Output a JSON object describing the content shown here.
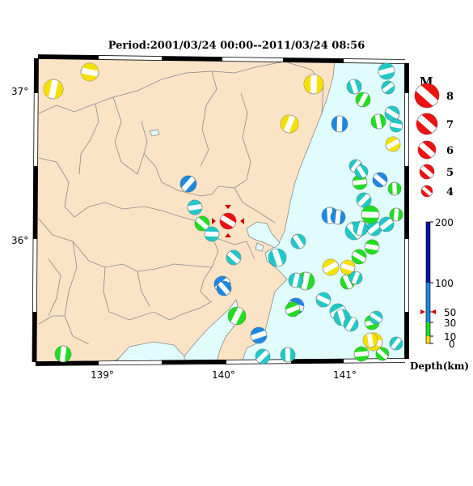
{
  "title": "Period:2001/03/24 00:00--2011/03/24 08:56",
  "map": {
    "lon_labels": [
      "139°",
      "140°",
      "141°"
    ],
    "lat_labels": [
      "37°",
      "36°"
    ],
    "land_color": "#fbe3c6",
    "sea_color": "#e1fcfc"
  },
  "legend": {
    "magnitude_title": "M",
    "magnitudes": [
      "8",
      "7",
      "6",
      "5",
      "4"
    ],
    "depth_title": "Depth(km)",
    "depth_ticks": [
      "200",
      "100",
      "50",
      "30",
      "10",
      "0"
    ],
    "depth_colors": {
      "shallow": "#f5e100",
      "d10_30": "#22dd22",
      "d30_100": "#22c8c8",
      "d100_200": "#1e88e0",
      "deep": "#0a10a0"
    }
  },
  "highlight_event": {
    "color": "#ee1111",
    "marker_color": "#cc0000"
  },
  "events": [
    {
      "color": "#f5e100",
      "rot": 30
    },
    {
      "color": "#f5e100",
      "rot": 120
    },
    {
      "color": "#f5e100",
      "rot": 200
    },
    {
      "color": "#f5e100",
      "rot": 40
    },
    {
      "color": "#f5e100",
      "rot": 80
    },
    {
      "color": "#f5e100",
      "rot": 300
    },
    {
      "color": "#1e88e0",
      "rot": 20
    },
    {
      "color": "#1e88e0",
      "rot": 60
    },
    {
      "color": "#22c8c8",
      "rot": 100
    },
    {
      "color": "#22dd22",
      "rot": 150
    },
    {
      "color": "#1e88e0",
      "rot": 250
    },
    {
      "color": "#22c8c8",
      "rot": 330
    },
    {
      "color": "#22dd22",
      "rot": 45
    },
    {
      "color": "#1e88e0",
      "rot": 90
    },
    {
      "color": "#22c8c8",
      "rot": 180
    },
    {
      "color": "#22dd22",
      "rot": 210
    },
    {
      "color": "#1e88e0",
      "rot": 15
    },
    {
      "color": "#22c8c8",
      "rot": 70
    },
    {
      "color": "#22dd22",
      "rot": 140
    },
    {
      "color": "#22c8c8",
      "rot": 260
    },
    {
      "color": "#1e88e0",
      "rot": 310
    },
    {
      "color": "#22dd22",
      "rot": 25
    }
  ]
}
